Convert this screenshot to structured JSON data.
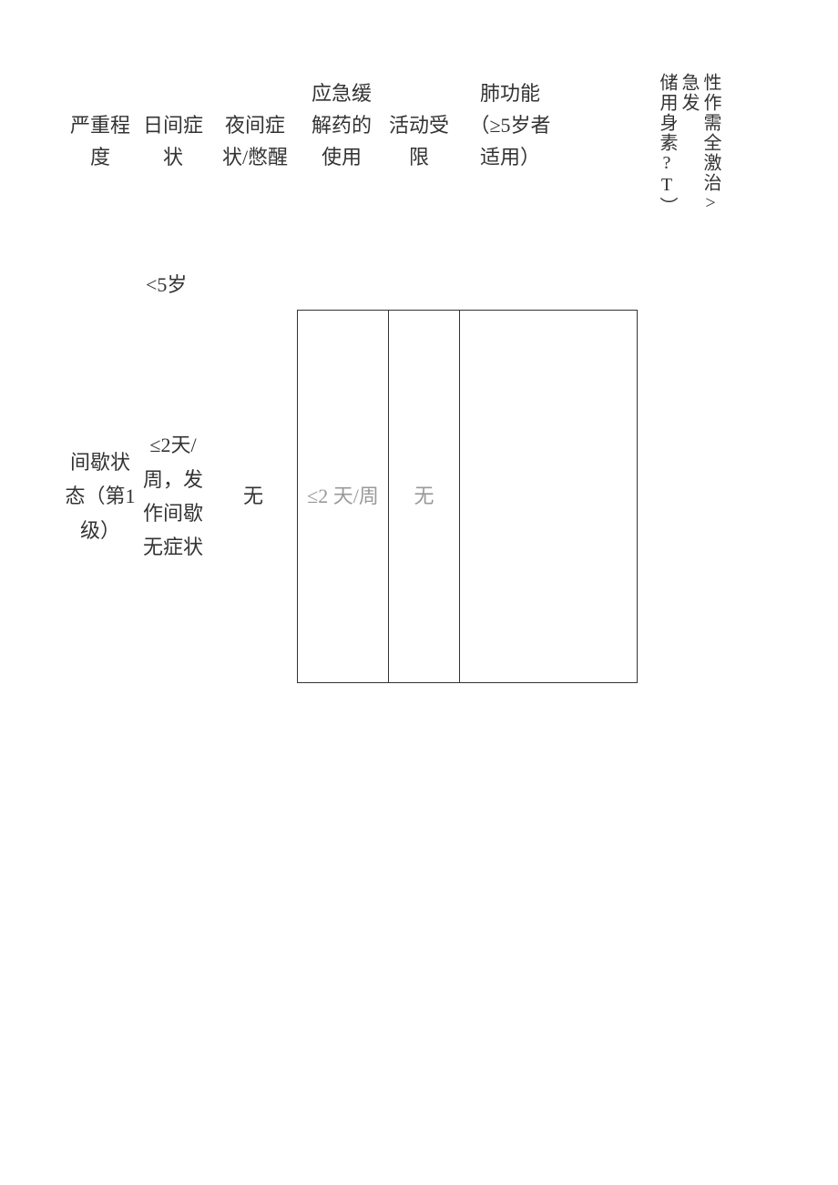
{
  "headers": {
    "severity": "严重程度",
    "daytime": "日间症状",
    "night": "夜间症状/憋醒",
    "rescue": "应急缓解药的使用",
    "activity": "活动受限",
    "lung": "肺功能（≥5岁者适用）"
  },
  "vertical_headers": {
    "col1": "性作需全激治> 急发",
    "col2": "储用身素?T）"
  },
  "age_label": "<5岁",
  "row1": {
    "severity": "间歇状态（第1级）",
    "daytime": "≤2天/周，发作间歇无症状",
    "night": "无",
    "rescue": "≤2 天/周",
    "activity": "无",
    "lung": ""
  },
  "styles": {
    "background_color": "#ffffff",
    "text_color": "#333333",
    "faded_text_color": "#999999",
    "border_color": "#333333",
    "font_size_main": 22,
    "font_size_vertical": 20,
    "font_family": "SimSun"
  }
}
